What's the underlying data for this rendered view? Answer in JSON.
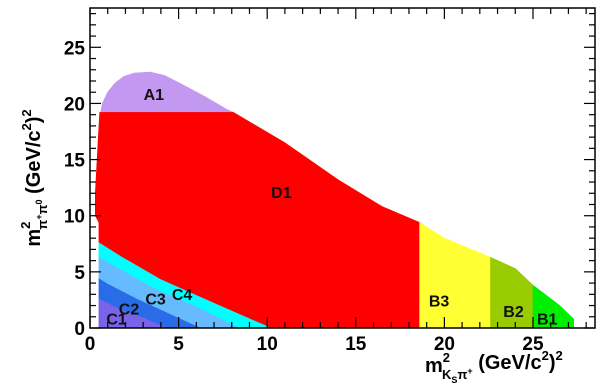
{
  "figure": {
    "x_axis": {
      "base": "m",
      "sup": "2",
      "sub_main": "K",
      "sub_main_sub": "S",
      "sub_tail": "π",
      "sub_tail_sup": "+",
      "unit_open": " (GeV/c",
      "unit_sup": "2",
      "unit_close": ")",
      "unit_outer_sup": "2"
    },
    "y_axis": {
      "base": "m",
      "sup": "2",
      "sub_1": "π",
      "sub_1_sup": "+",
      "sub_2": "π",
      "sub_2_sup": "0",
      "unit_open": " (GeV/c",
      "unit_sup": "2",
      "unit_close": ")",
      "unit_outer_sup": "2"
    }
  },
  "chart_data": {
    "type": "region-map",
    "xlim": [
      0,
      28.5
    ],
    "ylim": [
      0,
      28.5
    ],
    "x_ticks": [
      0,
      5,
      10,
      15,
      20,
      25
    ],
    "y_ticks": [
      0,
      5,
      10,
      15,
      20,
      25
    ],
    "grid": false,
    "regions": [
      {
        "label": "A1",
        "color": "#c398f0",
        "label_at": [
          3.6,
          20.3
        ]
      },
      {
        "label": "D1",
        "color": "#ff0000",
        "label_at": [
          10.8,
          11.6
        ]
      },
      {
        "label": "B3",
        "color": "#ffff33",
        "label_at": [
          19.7,
          1.9
        ]
      },
      {
        "label": "B2",
        "color": "#99cc00",
        "label_at": [
          23.9,
          1.0
        ]
      },
      {
        "label": "B1",
        "color": "#00ee00",
        "label_at": [
          25.8,
          0.3
        ]
      },
      {
        "label": "C4",
        "color": "#00ffff",
        "label_at": [
          5.2,
          2.5
        ]
      },
      {
        "label": "C3",
        "color": "#66bbff",
        "label_at": [
          3.7,
          2.1
        ]
      },
      {
        "label": "C2",
        "color": "#2a6be8",
        "label_at": [
          2.2,
          1.2
        ]
      },
      {
        "label": "C1",
        "color": "#7a63e8",
        "label_at": [
          1.5,
          0.3
        ]
      }
    ]
  }
}
